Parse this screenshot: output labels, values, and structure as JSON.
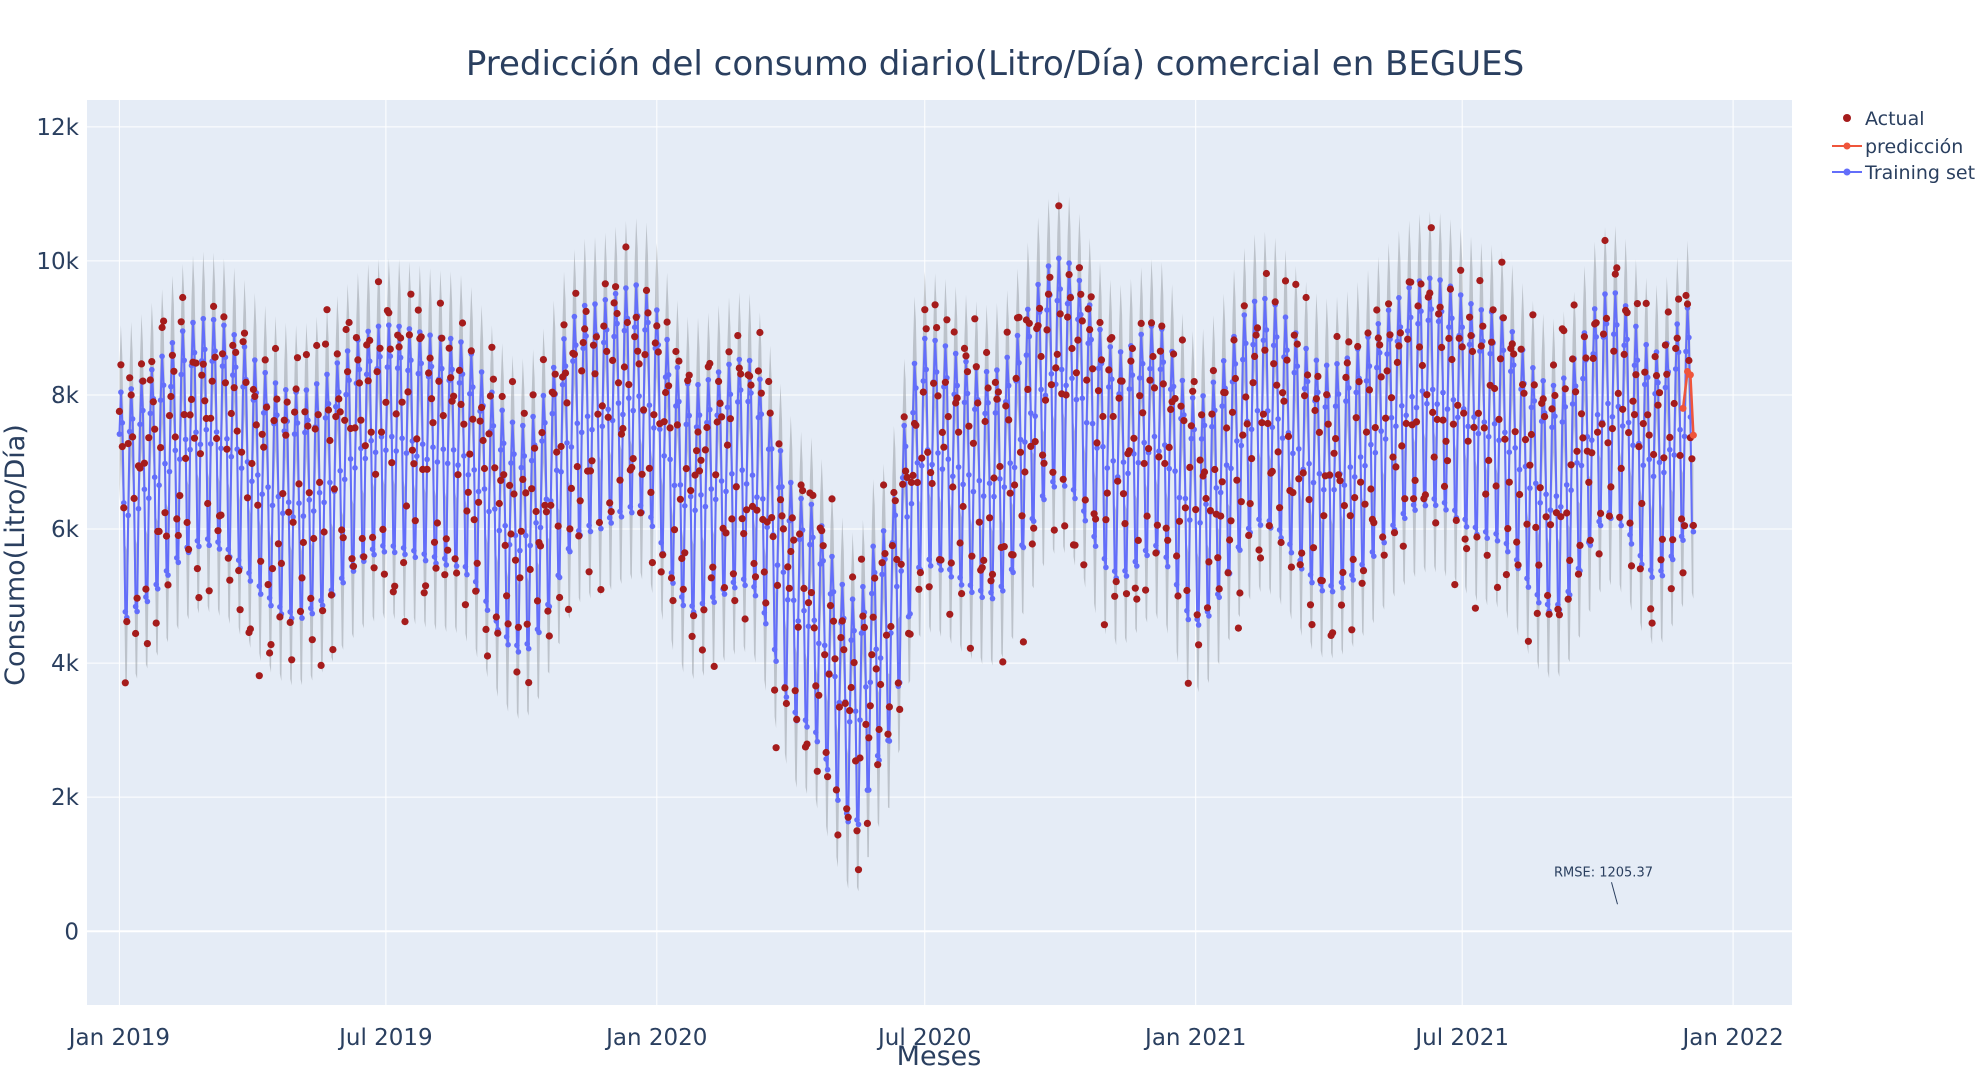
{
  "chart_data": {
    "type": "scatter",
    "title": "Predicción del consumo diario(Litro/Día) comercial en BEGUES",
    "xlabel": "Meses",
    "ylabel": "Consumo(Litro/Día)",
    "x_tick_labels": [
      "Jan 2019",
      "Jul 2019",
      "Jan 2020",
      "Jul 2020",
      "Jan 2021",
      "Jul 2021",
      "Jan 2022"
    ],
    "y_tick_labels": [
      "0",
      "2k",
      "4k",
      "6k",
      "8k",
      "10k",
      "12k"
    ],
    "x_range": [
      "2018-12-10",
      "2022-02-10"
    ],
    "ylim": [
      -1100,
      12400
    ],
    "x_start": "2019-01-01",
    "x_end": "2021-12-05",
    "grid": true,
    "legend_position": "top-right",
    "trend_knots": [
      [
        "2019-01-01",
        6600
      ],
      [
        "2019-03-01",
        7700
      ],
      [
        "2019-05-01",
        6600
      ],
      [
        "2019-07-01",
        7600
      ],
      [
        "2019-08-15",
        7400
      ],
      [
        "2019-10-01",
        6100
      ],
      [
        "2019-11-15",
        7900
      ],
      [
        "2019-12-20",
        8200
      ],
      [
        "2020-01-25",
        6700
      ],
      [
        "2020-03-01",
        7100
      ],
      [
        "2020-04-10",
        5000
      ],
      [
        "2020-05-15",
        3500
      ],
      [
        "2020-06-01",
        4500
      ],
      [
        "2020-07-01",
        7400
      ],
      [
        "2020-08-15",
        6900
      ],
      [
        "2020-10-01",
        8600
      ],
      [
        "2020-11-10",
        7200
      ],
      [
        "2020-12-05",
        7600
      ],
      [
        "2021-01-01",
        6500
      ],
      [
        "2021-02-15",
        8000
      ],
      [
        "2021-04-01",
        7000
      ],
      [
        "2021-06-10",
        8300
      ],
      [
        "2021-07-20",
        7800
      ],
      [
        "2021-09-01",
        6700
      ],
      [
        "2021-10-10",
        8100
      ],
      [
        "2021-11-10",
        7200
      ],
      [
        "2021-12-05",
        7900
      ]
    ],
    "weekly_amplitude": 1700,
    "actual_noise": 1050,
    "series": [
      {
        "name": "Actual",
        "color": "#a51c1c",
        "mode": "markers"
      },
      {
        "name": "predicción",
        "color": "#ef553b",
        "mode": "lines+markers",
        "x": [
          "2021-11-28",
          "2021-12-01",
          "2021-12-03",
          "2021-12-05"
        ],
        "y": [
          7800,
          8350,
          8300,
          7400
        ]
      },
      {
        "name": "Training set",
        "color": "#636efa",
        "mode": "lines+markers"
      }
    ],
    "annotations": [
      {
        "text": "RMSE: 1205.37",
        "x": "2021-10-05",
        "y": 700
      }
    ]
  }
}
